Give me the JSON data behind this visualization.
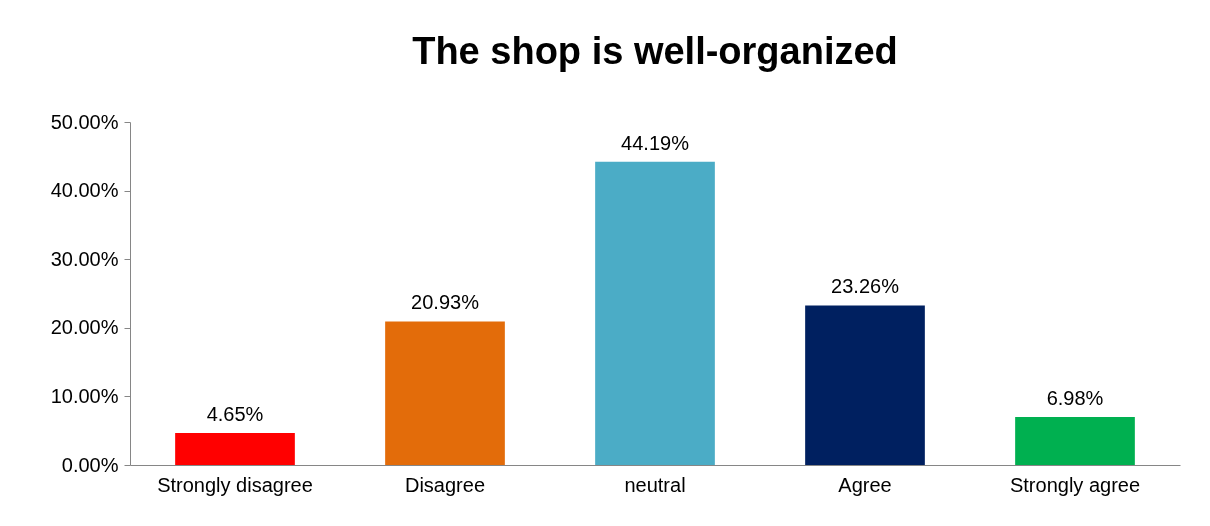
{
  "chart_data": {
    "type": "bar",
    "title": "The shop is well-organized",
    "categories": [
      "Strongly disagree",
      "Disagree",
      "neutral",
      "Agree",
      "Strongly agree"
    ],
    "values": [
      4.65,
      20.93,
      44.19,
      23.26,
      6.98
    ],
    "colors": [
      "#ff0000",
      "#e36c0a",
      "#4bacc6",
      "#002060",
      "#00b050"
    ],
    "value_labels": [
      "4.65%",
      "20.93%",
      "44.19%",
      "23.26%",
      "6.98%"
    ],
    "ylim": [
      0,
      50
    ],
    "yticks": [
      {
        "value": 0,
        "label": "0.00%"
      },
      {
        "value": 10,
        "label": "10.00%"
      },
      {
        "value": 20,
        "label": "20.00%"
      },
      {
        "value": 30,
        "label": "30.00%"
      },
      {
        "value": 40,
        "label": "40.00%"
      },
      {
        "value": 50,
        "label": "50.00%"
      }
    ]
  }
}
